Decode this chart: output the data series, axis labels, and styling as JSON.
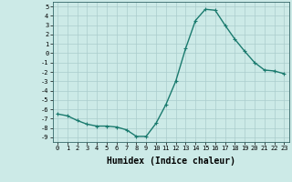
{
  "xlabel": "Humidex (Indice chaleur)",
  "x": [
    0,
    1,
    2,
    3,
    4,
    5,
    6,
    7,
    8,
    9,
    10,
    11,
    12,
    13,
    14,
    15,
    16,
    17,
    18,
    19,
    20,
    21,
    22,
    23
  ],
  "y": [
    -6.5,
    -6.7,
    -7.2,
    -7.6,
    -7.8,
    -7.8,
    -7.9,
    -8.2,
    -8.9,
    -8.9,
    -7.5,
    -5.5,
    -3.0,
    0.5,
    3.5,
    4.7,
    4.6,
    3.0,
    1.5,
    0.2,
    -1.0,
    -1.8,
    -1.9,
    -2.2
  ],
  "line_color": "#1a7a6e",
  "marker": "+",
  "marker_size": 3,
  "xlim": [
    -0.5,
    23.5
  ],
  "ylim": [
    -9.5,
    5.5
  ],
  "yticks": [
    5,
    4,
    3,
    2,
    1,
    0,
    -1,
    -2,
    -3,
    -4,
    -5,
    -6,
    -7,
    -8,
    -9
  ],
  "xticks": [
    0,
    1,
    2,
    3,
    4,
    5,
    6,
    7,
    8,
    9,
    10,
    11,
    12,
    13,
    14,
    15,
    16,
    17,
    18,
    19,
    20,
    21,
    22,
    23
  ],
  "bg_color": "#cceae7",
  "grid_color": "#aacccc",
  "tick_label_fontsize": 5,
  "xlabel_fontsize": 7,
  "line_width": 1.0
}
